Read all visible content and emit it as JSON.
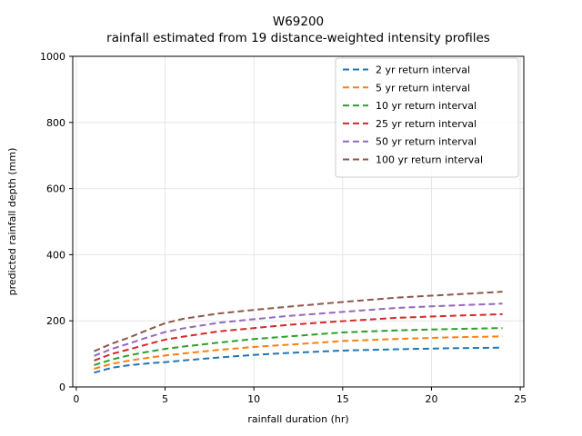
{
  "chart_data": {
    "type": "line",
    "title_lines": [
      "W69200",
      "rainfall estimated from 19 distance-weighted intensity profiles"
    ],
    "xlabel": "rainfall duration (hr)",
    "ylabel": "predicted rainfall depth (mm)",
    "xlim": [
      -0.2,
      25.2
    ],
    "ylim": [
      0,
      1000
    ],
    "xticks": [
      0,
      5,
      10,
      15,
      20,
      25
    ],
    "yticks": [
      0,
      200,
      400,
      600,
      800,
      1000
    ],
    "grid": true,
    "grid_color": "#e6e6e6",
    "spine_color": "#000000",
    "line_style": "dashed",
    "legend_position": "upper right",
    "legend_border_color": "#cccccc",
    "x": [
      1,
      2,
      3,
      4,
      5,
      6,
      8,
      10,
      12,
      15,
      18,
      21,
      24
    ],
    "series": [
      {
        "name": "2 yr return interval",
        "color": "#1f77b4",
        "values": [
          43,
          58,
          66,
          71,
          75,
          80,
          89,
          97,
          103,
          110,
          114,
          117,
          119
        ]
      },
      {
        "name": "5 yr return interval",
        "color": "#ff7f0e",
        "values": [
          55,
          70,
          80,
          88,
          95,
          101,
          112,
          121,
          128,
          139,
          145,
          150,
          153
        ]
      },
      {
        "name": "10 yr return interval",
        "color": "#2ca02c",
        "values": [
          66,
          83,
          96,
          106,
          115,
          122,
          134,
          145,
          153,
          165,
          171,
          175,
          178
        ]
      },
      {
        "name": "25 yr return interval",
        "color": "#d62728",
        "values": [
          80,
          100,
          114,
          129,
          143,
          152,
          168,
          178,
          188,
          199,
          209,
          215,
          220
        ]
      },
      {
        "name": "50 yr return interval",
        "color": "#9467bd",
        "values": [
          94,
          115,
          132,
          150,
          166,
          177,
          194,
          205,
          215,
          227,
          239,
          246,
          252
        ]
      },
      {
        "name": "100 yr return interval",
        "color": "#8c564b",
        "values": [
          108,
          131,
          150,
          172,
          193,
          206,
          222,
          233,
          243,
          257,
          270,
          279,
          288
        ]
      }
    ]
  }
}
